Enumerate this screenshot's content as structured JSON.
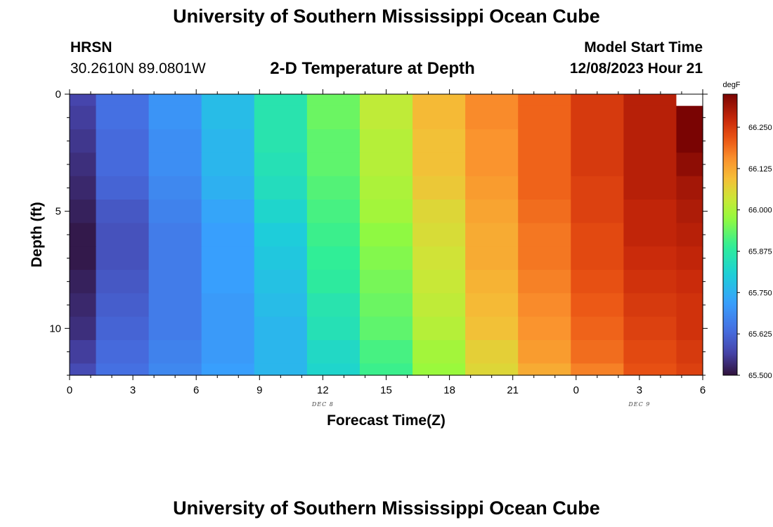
{
  "header": {
    "title": "University of Southern Mississippi Ocean Cube",
    "station_name": "HRSN",
    "station_coords": "30.2610N  89.0801W",
    "subtitle": "2-D Temperature at Depth",
    "model_label": "Model Start Time",
    "model_time": "12/08/2023 Hour 21"
  },
  "footer": {
    "title": "University of Southern Mississippi Ocean Cube"
  },
  "chart_data": {
    "type": "heatmap",
    "xlabel": "Forecast Time(Z)",
    "ylabel": "Depth (ft)",
    "x_ticks": [
      "0",
      "3",
      "6",
      "9",
      "12",
      "15",
      "18",
      "21",
      "0",
      "3",
      "6"
    ],
    "x_range_hours": [
      0,
      30
    ],
    "date_labels": [
      {
        "text": "DEC 8",
        "hour": 12
      },
      {
        "text": "DEC 9",
        "hour": 27
      }
    ],
    "y_ticks": [
      "0",
      "5",
      "10"
    ],
    "ylim_ft": [
      0,
      12
    ],
    "y_inverted": true,
    "columns_center_hour": [
      0,
      2.5,
      5,
      7.5,
      10,
      12.5,
      15,
      17.5,
      20,
      22.5,
      25,
      27.5,
      30
    ],
    "depth_rows_ft": [
      0,
      1,
      2,
      3,
      4,
      5,
      6,
      7,
      8,
      9,
      10,
      11,
      12
    ],
    "colorbar": {
      "unit": "degF",
      "min": 65.5,
      "max": 66.35,
      "ticks": [
        "65.500",
        "65.625",
        "65.750",
        "65.875",
        "66.000",
        "66.125",
        "66.250"
      ]
    },
    "missing_cells": [
      {
        "column_index": 12,
        "depth_index": 0
      }
    ],
    "values_degF": [
      [
        65.57,
        65.64,
        65.7,
        65.77,
        65.86,
        65.94,
        66.02,
        66.1,
        66.16,
        66.2,
        66.25,
        66.29,
        null
      ],
      [
        65.56,
        65.64,
        65.7,
        65.77,
        65.86,
        65.94,
        66.02,
        66.1,
        66.16,
        66.2,
        66.25,
        66.29,
        66.35
      ],
      [
        65.55,
        65.63,
        65.69,
        65.76,
        65.86,
        65.93,
        66.01,
        66.09,
        66.15,
        66.2,
        66.25,
        66.29,
        66.35
      ],
      [
        65.54,
        65.63,
        65.69,
        65.76,
        65.85,
        65.93,
        66.01,
        66.09,
        66.15,
        66.2,
        66.25,
        66.29,
        66.33
      ],
      [
        65.53,
        65.62,
        65.68,
        65.75,
        65.84,
        65.92,
        66.0,
        66.08,
        66.14,
        66.2,
        66.24,
        66.29,
        66.31
      ],
      [
        65.52,
        65.6,
        65.67,
        65.73,
        65.82,
        65.91,
        65.99,
        66.06,
        66.13,
        66.19,
        66.24,
        66.28,
        66.3
      ],
      [
        65.51,
        65.59,
        65.66,
        65.72,
        65.8,
        65.9,
        65.97,
        66.05,
        66.12,
        66.18,
        66.23,
        66.28,
        66.29
      ],
      [
        65.51,
        65.59,
        65.66,
        65.72,
        65.79,
        65.89,
        65.96,
        66.04,
        66.12,
        66.18,
        66.23,
        66.27,
        66.28
      ],
      [
        65.52,
        65.6,
        65.66,
        65.72,
        65.78,
        65.88,
        65.95,
        66.03,
        66.11,
        66.17,
        66.22,
        66.26,
        66.27
      ],
      [
        65.53,
        65.61,
        65.66,
        65.71,
        65.77,
        65.86,
        65.94,
        66.02,
        66.1,
        66.16,
        66.21,
        66.25,
        66.26
      ],
      [
        65.54,
        65.62,
        65.66,
        65.71,
        65.76,
        65.85,
        65.93,
        66.01,
        66.09,
        66.15,
        66.2,
        66.24,
        66.26
      ],
      [
        65.56,
        65.63,
        65.67,
        65.71,
        65.76,
        65.83,
        65.91,
        65.99,
        66.07,
        66.14,
        66.19,
        66.23,
        66.25
      ],
      [
        65.58,
        65.64,
        65.68,
        65.72,
        65.76,
        65.82,
        65.9,
        65.98,
        66.06,
        66.12,
        66.17,
        66.22,
        66.24
      ]
    ]
  }
}
